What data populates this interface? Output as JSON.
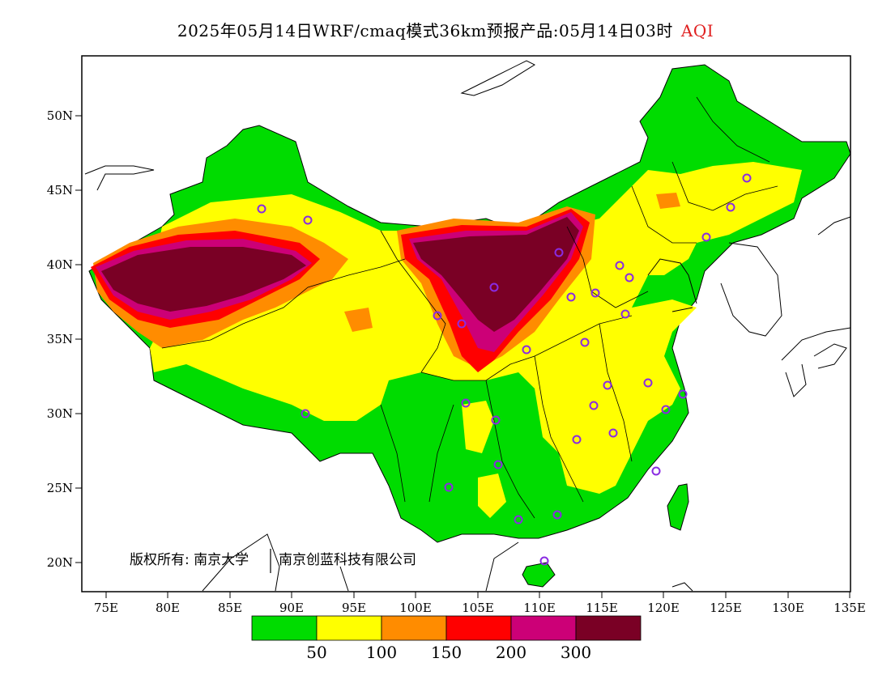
{
  "title": {
    "main": "2025年05月14日WRF/cmaq模式36km预报产品:05月14日03时",
    "variable": "AQI"
  },
  "axes": {
    "x_ticks": [
      "75E",
      "80E",
      "85E",
      "90E",
      "95E",
      "100E",
      "105E",
      "110E",
      "115E",
      "120E",
      "125E",
      "130E",
      "135E"
    ],
    "y_ticks": [
      "50N",
      "45N",
      "40N",
      "35N",
      "30N",
      "25N",
      "20N"
    ]
  },
  "copyright": {
    "part1": "版权所有: 南京大学",
    "part2": "南京创蓝科技有限公司"
  },
  "legend": {
    "colors": [
      "#00dc00",
      "#ffff00",
      "#ff8c00",
      "#ff0000",
      "#cc0077",
      "#7a0025"
    ],
    "labels": [
      "50",
      "100",
      "150",
      "200",
      "300"
    ]
  },
  "colors": {
    "good": "#00dc00",
    "moderate": "#ffff00",
    "usg": "#ff8c00",
    "unhealthy": "#ff0000",
    "very_unhealthy": "#cc0077",
    "hazardous": "#7a0025",
    "station_marker": "#8a2be2"
  }
}
